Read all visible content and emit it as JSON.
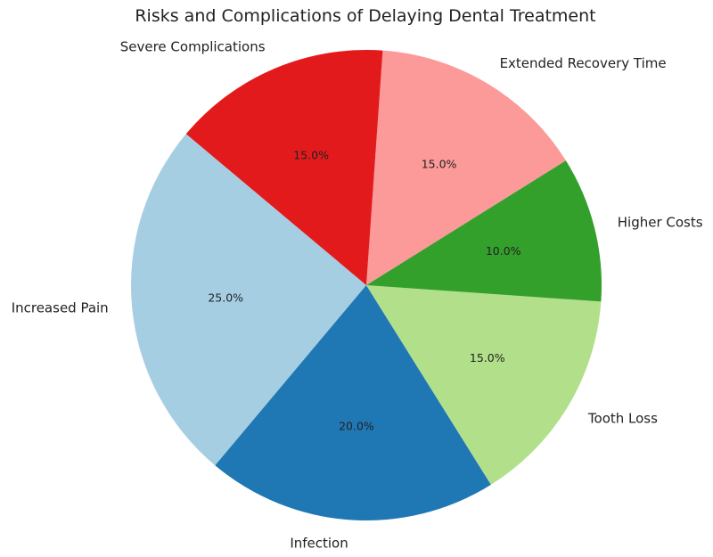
{
  "chart_data": {
    "type": "pie",
    "title": "Risks and Complications of Delaying Dental Treatment",
    "slices": [
      {
        "label": "Increased Pain",
        "value": 25.0,
        "pct_label": "25.0%",
        "color": "#a6cee3"
      },
      {
        "label": "Infection",
        "value": 20.0,
        "pct_label": "20.0%",
        "color": "#1f78b4"
      },
      {
        "label": "Tooth Loss",
        "value": 15.0,
        "pct_label": "15.0%",
        "color": "#b2df8a"
      },
      {
        "label": "Higher Costs",
        "value": 10.0,
        "pct_label": "10.0%",
        "color": "#33a02c"
      },
      {
        "label": "Extended Recovery Time",
        "value": 15.0,
        "pct_label": "15.0%",
        "color": "#fb9a99"
      },
      {
        "label": "Severe Complications",
        "value": 15.0,
        "pct_label": "15.0%",
        "color": "#e31a1c"
      }
    ],
    "start_angle_deg": 140,
    "direction": "counterclockwise",
    "legend": "none"
  }
}
